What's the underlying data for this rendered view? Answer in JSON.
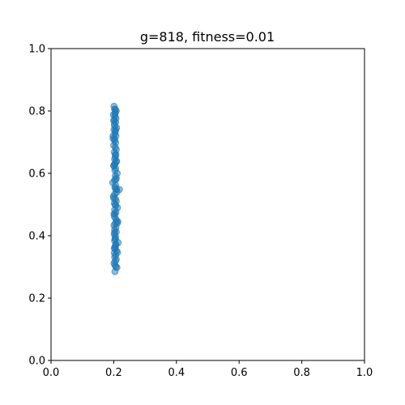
{
  "chart_data": {
    "type": "scatter",
    "title": "g=818, fitness=0.01",
    "xlabel": "",
    "ylabel": "",
    "xlim": [
      0,
      1
    ],
    "ylim": [
      0,
      1
    ],
    "grid": false,
    "xticks": [
      "0.0",
      "0.2",
      "0.4",
      "0.6",
      "0.8",
      "1.0"
    ],
    "yticks": [
      "0.0",
      "0.2",
      "0.4",
      "0.6",
      "0.8",
      "1.0"
    ],
    "color": "#1f77b4",
    "series": [
      {
        "x": [
          0.201,
          0.203,
          0.208,
          0.205,
          0.199,
          0.204,
          0.207,
          0.2,
          0.206,
          0.202,
          0.203,
          0.209,
          0.201,
          0.205,
          0.204,
          0.207,
          0.198,
          0.203,
          0.206,
          0.2,
          0.205,
          0.208,
          0.202,
          0.207,
          0.205,
          0.203,
          0.209,
          0.204,
          0.201,
          0.206,
          0.211,
          0.204,
          0.2,
          0.205,
          0.208,
          0.203,
          0.197,
          0.206,
          0.204,
          0.209,
          0.21,
          0.203,
          0.199,
          0.205,
          0.208,
          0.202,
          0.206,
          0.212,
          0.203,
          0.207,
          0.204,
          0.218,
          0.202,
          0.206,
          0.21,
          0.205,
          0.201,
          0.213,
          0.207,
          0.203,
          0.208,
          0.202,
          0.205,
          0.206,
          0.203,
          0.214,
          0.207,
          0.205,
          0.204,
          0.209,
          0.202,
          0.206,
          0.212,
          0.203,
          0.208,
          0.205,
          0.201,
          0.204,
          0.207,
          0.21,
          0.204,
          0.202,
          0.206,
          0.203,
          0.211,
          0.205,
          0.2,
          0.207,
          0.203,
          0.205,
          0.198,
          0.206,
          0.202,
          0.204,
          0.205,
          0.203,
          0.208,
          0.206,
          0.201,
          0.204
        ],
        "y": [
          0.815,
          0.806,
          0.8,
          0.795,
          0.788,
          0.782,
          0.776,
          0.77,
          0.764,
          0.758,
          0.752,
          0.746,
          0.74,
          0.734,
          0.728,
          0.72,
          0.712,
          0.705,
          0.698,
          0.69,
          0.683,
          0.676,
          0.668,
          0.66,
          0.652,
          0.645,
          0.638,
          0.63,
          0.623,
          0.616,
          0.6,
          0.609,
          0.625,
          0.592,
          0.585,
          0.578,
          0.57,
          0.562,
          0.555,
          0.548,
          0.54,
          0.533,
          0.526,
          0.519,
          0.511,
          0.504,
          0.497,
          0.49,
          0.483,
          0.476,
          0.469,
          0.548,
          0.462,
          0.455,
          0.447,
          0.44,
          0.433,
          0.445,
          0.426,
          0.419,
          0.412,
          0.405,
          0.398,
          0.391,
          0.384,
          0.378,
          0.372,
          0.365,
          0.358,
          0.351,
          0.345,
          0.338,
          0.346,
          0.331,
          0.324,
          0.318,
          0.312,
          0.305,
          0.3,
          0.298,
          0.285,
          0.36,
          0.37,
          0.41,
          0.44,
          0.5,
          0.52,
          0.58,
          0.63,
          0.66,
          0.72,
          0.74,
          0.77,
          0.79,
          0.805,
          0.71,
          0.64,
          0.55,
          0.47,
          0.39
        ]
      }
    ]
  }
}
